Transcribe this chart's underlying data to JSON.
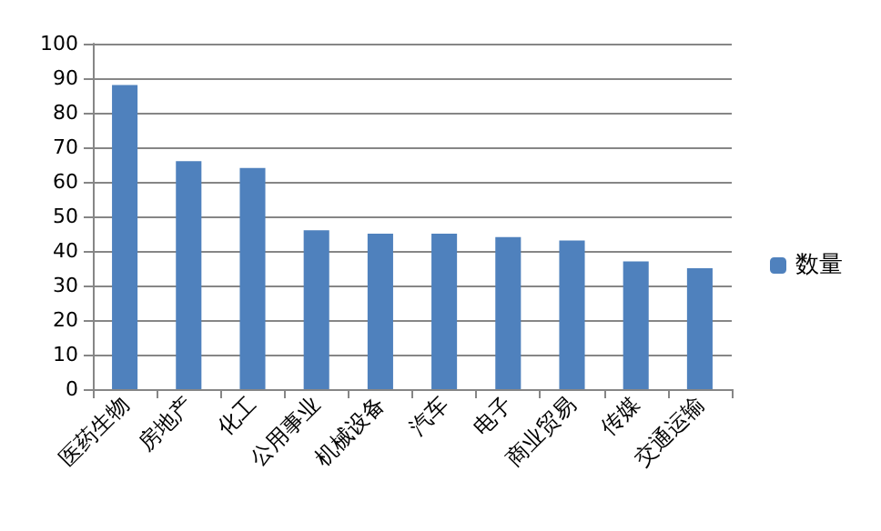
{
  "chart_data": {
    "type": "bar",
    "categories": [
      "医药生物",
      "房地产",
      "化工",
      "公用事业",
      "机械设备",
      "汽车",
      "电子",
      "商业贸易",
      "传媒",
      "交通运输"
    ],
    "series": [
      {
        "name": "数量",
        "color": "#4f81bd",
        "values": [
          88,
          66,
          64,
          46,
          45,
          45,
          44,
          43,
          37,
          35
        ]
      }
    ],
    "ylim": [
      0,
      100
    ],
    "yticks": [
      0,
      10,
      20,
      30,
      40,
      50,
      60,
      70,
      80,
      90,
      100
    ],
    "grid": "y",
    "legend": "right"
  }
}
